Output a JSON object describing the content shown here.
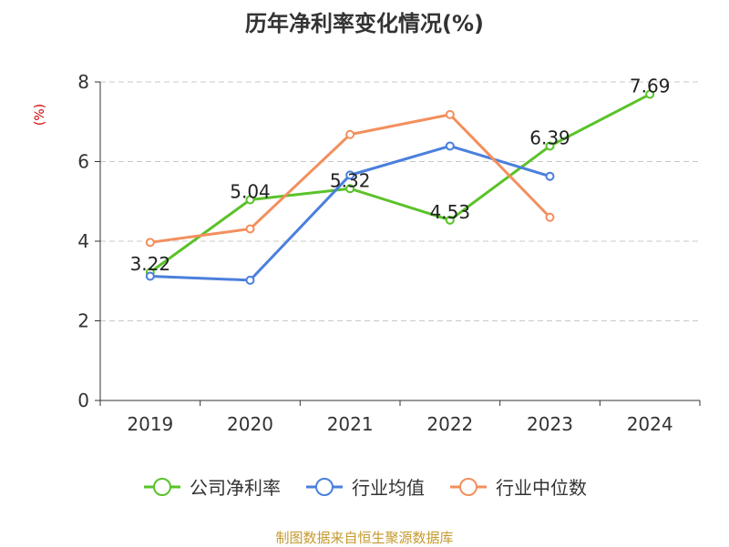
{
  "chart_data": {
    "type": "line",
    "title": "历年净利率变化情况(%)",
    "ylabel": "(%)",
    "xlabel": "",
    "categories": [
      "2019",
      "2020",
      "2021",
      "2022",
      "2023",
      "2024"
    ],
    "ylim": [
      0,
      8
    ],
    "yticks": [
      0,
      2,
      4,
      6,
      8
    ],
    "grid": true,
    "legend_position": "bottom",
    "series": [
      {
        "name": "公司净利率",
        "color": "#5ac229",
        "values": [
          3.22,
          5.04,
          5.32,
          4.53,
          6.39,
          7.69
        ],
        "labels": [
          "3.22",
          "5.04",
          "5.32",
          "4.53",
          "6.39",
          "7.69"
        ]
      },
      {
        "name": "行业均值",
        "color": "#4a7fdc",
        "values": [
          3.12,
          3.02,
          5.66,
          6.39,
          5.63,
          null
        ],
        "labels": []
      },
      {
        "name": "行业中位数",
        "color": "#f38f5d",
        "values": [
          3.97,
          4.31,
          6.68,
          7.18,
          4.6,
          null
        ],
        "labels": []
      }
    ]
  },
  "source": "制图数据来自恒生聚源数据库"
}
